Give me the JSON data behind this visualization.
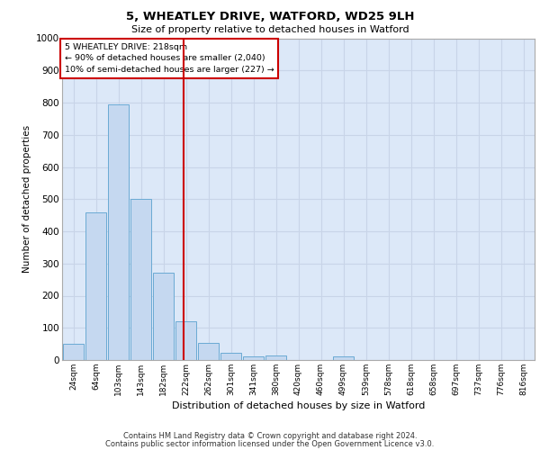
{
  "title": "5, WHEATLEY DRIVE, WATFORD, WD25 9LH",
  "subtitle": "Size of property relative to detached houses in Watford",
  "xlabel": "Distribution of detached houses by size in Watford",
  "ylabel": "Number of detached properties",
  "footer1": "Contains HM Land Registry data © Crown copyright and database right 2024.",
  "footer2": "Contains public sector information licensed under the Open Government Licence v3.0.",
  "bar_labels": [
    "24sqm",
    "64sqm",
    "103sqm",
    "143sqm",
    "182sqm",
    "222sqm",
    "262sqm",
    "301sqm",
    "341sqm",
    "380sqm",
    "420sqm",
    "460sqm",
    "499sqm",
    "539sqm",
    "578sqm",
    "618sqm",
    "658sqm",
    "697sqm",
    "737sqm",
    "776sqm",
    "816sqm"
  ],
  "bar_values": [
    50,
    460,
    795,
    500,
    270,
    120,
    52,
    22,
    10,
    15,
    0,
    0,
    12,
    0,
    0,
    0,
    0,
    0,
    0,
    0,
    0
  ],
  "bar_color": "#c5d8f0",
  "bar_edgecolor": "#6aaad4",
  "ylim": [
    0,
    1000
  ],
  "yticks": [
    0,
    100,
    200,
    300,
    400,
    500,
    600,
    700,
    800,
    900,
    1000
  ],
  "red_line_x": 4.9,
  "annotation_title": "5 WHEATLEY DRIVE: 218sqm",
  "annotation_line1": "← 90% of detached houses are smaller (2,040)",
  "annotation_line2": "10% of semi-detached houses are larger (227) →",
  "annotation_box_color": "#ffffff",
  "annotation_box_edgecolor": "#cc0000",
  "red_line_color": "#cc0000",
  "grid_color": "#c8d4e8",
  "bg_color": "#dce8f8"
}
